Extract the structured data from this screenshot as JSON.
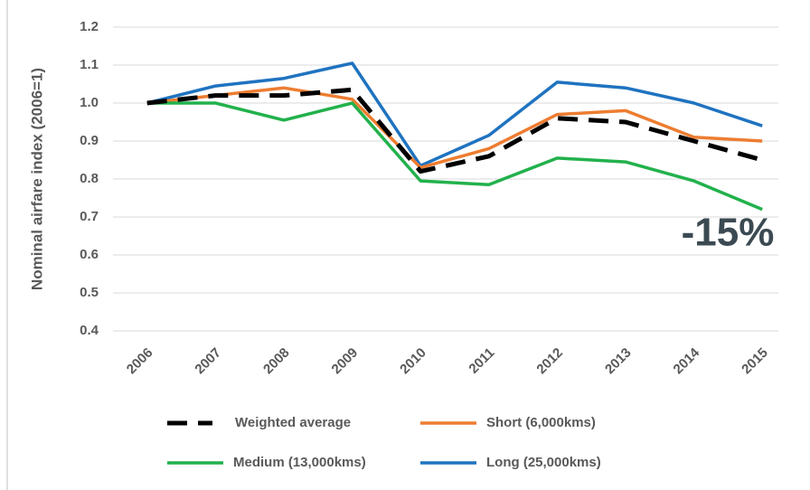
{
  "chart_data": {
    "type": "line",
    "y_label": "Nominal airfare index (2006=1)",
    "annotation": "-15%",
    "categories": [
      "2006",
      "2007",
      "2008",
      "2009",
      "2010",
      "2011",
      "2012",
      "2013",
      "2014",
      "2015"
    ],
    "series": [
      {
        "name": "Weighted average",
        "color": "#000000",
        "dashed": true,
        "values": [
          1.0,
          1.02,
          1.02,
          1.035,
          0.82,
          0.86,
          0.96,
          0.95,
          0.9,
          0.85
        ]
      },
      {
        "name": "Short (6,000kms)",
        "color": "#ed7d31",
        "dashed": false,
        "values": [
          1.0,
          1.02,
          1.04,
          1.01,
          0.83,
          0.88,
          0.97,
          0.98,
          0.91,
          0.9
        ]
      },
      {
        "name": "Medium (13,000kms)",
        "color": "#22b14c",
        "dashed": false,
        "values": [
          1.0,
          1.0,
          0.955,
          1.0,
          0.795,
          0.785,
          0.855,
          0.845,
          0.795,
          0.72
        ]
      },
      {
        "name": "Long (25,000kms)",
        "color": "#1f73c0",
        "dashed": false,
        "values": [
          1.0,
          1.045,
          1.065,
          1.105,
          0.835,
          0.915,
          1.055,
          1.04,
          1.0,
          0.94
        ]
      }
    ],
    "ylim": [
      0.4,
      1.2
    ],
    "yticks": [
      0.4,
      0.5,
      0.6,
      0.7,
      0.8,
      0.9,
      {
        "value": 1,
        "label": "1.0"
      },
      1.1,
      1.2
    ],
    "grid": true,
    "legend": "bottom"
  }
}
